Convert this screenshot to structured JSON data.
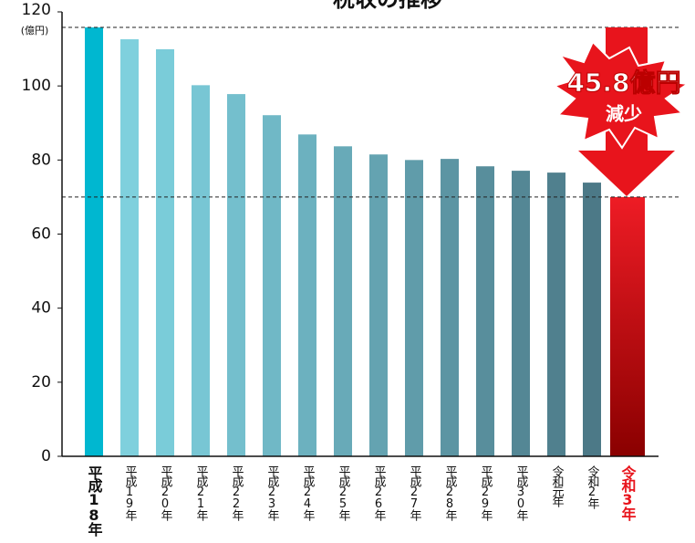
{
  "chart_data": {
    "type": "bar",
    "title": "税収の推移",
    "y_unit": "(億円)",
    "categories": [
      "平成18年",
      "平成19年",
      "平成20年",
      "平成21年",
      "平成22年",
      "平成23年",
      "平成24年",
      "平成25年",
      "平成26年",
      "平成27年",
      "平成28年",
      "平成29年",
      "平成30年",
      "令和元年",
      "令和2年",
      "令和3年"
    ],
    "values": [
      115.8,
      112.6,
      109.9,
      100.2,
      97.8,
      92.1,
      86.9,
      83.7,
      81.5,
      80.0,
      80.3,
      78.3,
      77.1,
      76.6,
      73.9,
      70.0
    ],
    "colors": [
      "#00b7d0",
      "#7fd0dd",
      "#7accd9",
      "#78c6d4",
      "#74bfcd",
      "#70b8c6",
      "#6cb1bf",
      "#68aab8",
      "#64a3b1",
      "#609caa",
      "#5c95a3",
      "#588e9c",
      "#548795",
      "#50808e",
      "#4c7987",
      "#d9141c"
    ],
    "ylim": [
      0,
      120
    ],
    "yticks": [
      0,
      20,
      40,
      60,
      80,
      100,
      120
    ],
    "annotation": {
      "amount": "45.8億円",
      "text": "減少"
    }
  }
}
